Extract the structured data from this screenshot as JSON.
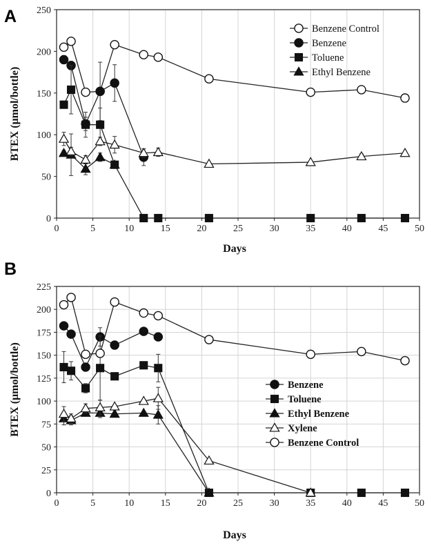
{
  "chart_data": [
    {
      "type": "line",
      "panel": "A",
      "title": "",
      "xlabel": "Days",
      "ylabel": "BTEX (μmol/bottle)",
      "xlim": [
        0,
        50
      ],
      "ylim": [
        0,
        250
      ],
      "xticks": [
        "0",
        "5",
        "10",
        "15",
        "20",
        "25",
        "30",
        "35",
        "40",
        "45",
        "50"
      ],
      "yticks": [
        "0",
        "50",
        "100",
        "150",
        "200",
        "250"
      ],
      "grid": "vertical",
      "legend_position": "top-right",
      "series": [
        {
          "name": "Benzene Control",
          "marker": "circle-open",
          "x": [
            1,
            2,
            4,
            6,
            8,
            12,
            14,
            21,
            35,
            42,
            48
          ],
          "y": [
            205,
            212,
            151,
            152,
            208,
            196,
            193,
            167,
            151,
            154,
            144
          ],
          "err": [
            0,
            0,
            0,
            0,
            0,
            0,
            0,
            0,
            0,
            0,
            0
          ]
        },
        {
          "name": "Benzene",
          "marker": "circle-filled",
          "x": [
            1,
            2,
            4,
            6,
            8,
            12
          ],
          "y": [
            190,
            183,
            113,
            152,
            162,
            73
          ],
          "err": [
            5,
            5,
            8,
            35,
            22,
            10
          ]
        },
        {
          "name": "Toluene",
          "marker": "square-filled",
          "x": [
            1,
            2,
            4,
            6,
            8,
            12,
            14,
            21,
            35,
            42,
            48
          ],
          "y": [
            136,
            154,
            112,
            112,
            64,
            0,
            0,
            0,
            0,
            0,
            0
          ],
          "err": [
            0,
            29,
            15,
            20,
            0,
            0,
            0,
            0,
            0,
            0,
            0
          ]
        },
        {
          "name": "Ethyl Benzene",
          "marker": "triangle-filled",
          "x": [
            1,
            2,
            4,
            6,
            8
          ],
          "y": [
            78,
            76,
            59,
            73,
            64
          ],
          "err": [
            3,
            25,
            7,
            5,
            0
          ]
        },
        {
          "name": "Xylene",
          "marker": "triangle-open",
          "in_legend": false,
          "x": [
            1,
            2,
            4,
            6,
            8,
            12,
            14,
            21,
            35,
            42,
            48
          ],
          "y": [
            95,
            80,
            70,
            92,
            88,
            78,
            79,
            65,
            67,
            74,
            78
          ],
          "err": [
            8,
            5,
            5,
            5,
            10,
            5,
            5,
            0,
            0,
            3,
            0
          ]
        }
      ]
    },
    {
      "type": "line",
      "panel": "B",
      "title": "",
      "xlabel": "Days",
      "ylabel": "BTEX (μmol/bottle)",
      "xlim": [
        0,
        50
      ],
      "ylim": [
        0,
        225
      ],
      "xticks": [
        "0",
        "5",
        "10",
        "15",
        "20",
        "25",
        "30",
        "35",
        "40",
        "45",
        "50"
      ],
      "yticks": [
        "0",
        "25",
        "50",
        "75",
        "100",
        "125",
        "150",
        "175",
        "200",
        "225"
      ],
      "grid": "both",
      "legend_position": "center-right",
      "series": [
        {
          "name": "Benzene",
          "marker": "circle-filled",
          "x": [
            1,
            2,
            4,
            6,
            8,
            12,
            14
          ],
          "y": [
            182,
            173,
            137,
            170,
            161,
            176,
            170
          ],
          "err": [
            0,
            0,
            0,
            10,
            0,
            0,
            0
          ]
        },
        {
          "name": "Toluene",
          "marker": "square-filled",
          "x": [
            1,
            2,
            4,
            6,
            8,
            12,
            14,
            21,
            35,
            42,
            48
          ],
          "y": [
            137,
            133,
            114,
            136,
            127,
            139,
            136,
            0,
            0,
            0,
            0
          ],
          "err": [
            17,
            10,
            5,
            35,
            0,
            0,
            15,
            0,
            0,
            0,
            0
          ]
        },
        {
          "name": "Ethyl Benzene",
          "marker": "triangle-filled",
          "x": [
            1,
            2,
            4,
            6,
            8,
            12,
            14,
            21
          ],
          "y": [
            81,
            79,
            87,
            87,
            86,
            87,
            85,
            0
          ],
          "err": [
            7,
            5,
            0,
            5,
            0,
            0,
            10,
            0
          ]
        },
        {
          "name": "Xylene",
          "marker": "triangle-open",
          "x": [
            1,
            2,
            4,
            6,
            8,
            12,
            14,
            21,
            35
          ],
          "y": [
            86,
            81,
            92,
            93,
            94,
            100,
            103,
            35,
            0
          ],
          "err": [
            8,
            5,
            5,
            8,
            0,
            0,
            12,
            0,
            0
          ]
        },
        {
          "name": "Benzene Control",
          "marker": "circle-open",
          "x": [
            1,
            2,
            4,
            6,
            8,
            12,
            14,
            21,
            35,
            42,
            48
          ],
          "y": [
            205,
            213,
            151,
            152,
            208,
            196,
            193,
            167,
            151,
            154,
            144
          ],
          "err": [
            0,
            0,
            0,
            0,
            0,
            0,
            0,
            0,
            0,
            0,
            0
          ]
        }
      ]
    }
  ]
}
